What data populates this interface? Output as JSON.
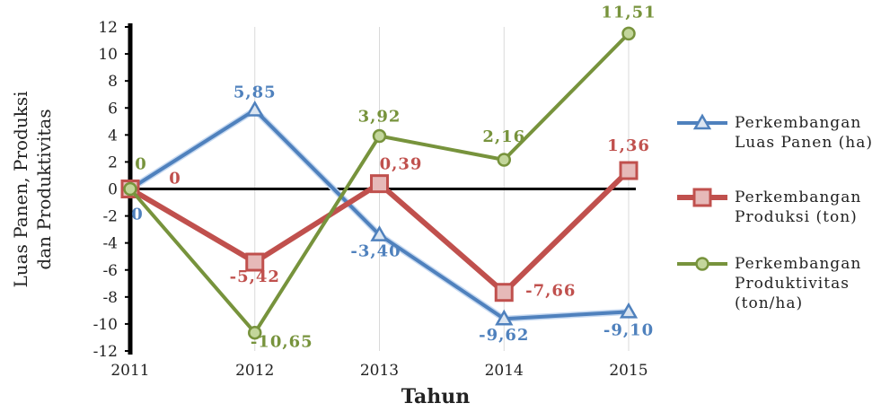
{
  "chart_data": {
    "type": "line",
    "x": [
      "2011",
      "2012",
      "2013",
      "2014",
      "2015"
    ],
    "xlabel": "Tahun",
    "ylabel_lines": [
      "Luas Panen, Produksi",
      "dan Produktivitas"
    ],
    "ylim": [
      -12,
      12
    ],
    "yticks": [
      "-12",
      "-10",
      "-8",
      "-6",
      "-4",
      "-2",
      "0",
      "2",
      "4",
      "6",
      "8",
      "10",
      "12"
    ],
    "legend_position": "right",
    "series": [
      {
        "name_lines": [
          "Perkembangan",
          "Luas Panen (ha)"
        ],
        "color": "#4f81bd",
        "marker": "triangle",
        "values": [
          0,
          5.85,
          -3.4,
          -9.62,
          -9.1
        ],
        "labels": [
          "0",
          "5,85",
          "-3,40",
          "-9,62",
          "-9,10"
        ]
      },
      {
        "name_lines": [
          "Perkembangan",
          "Produksi (ton)"
        ],
        "color": "#c0504d",
        "marker": "square",
        "values": [
          0,
          -5.42,
          0.39,
          -7.66,
          1.36
        ],
        "labels": [
          "0",
          "-5,42",
          "0,39",
          "-7,66",
          "1,36"
        ]
      },
      {
        "name_lines": [
          "Perkembangan",
          "Produktivitas",
          "(ton/ha)"
        ],
        "color": "#77933c",
        "marker": "circle",
        "values": [
          0,
          -10.65,
          3.92,
          2.16,
          11.51
        ],
        "labels": [
          "0",
          "-10,65",
          "3,92",
          "2,16",
          "11,51"
        ]
      }
    ]
  }
}
